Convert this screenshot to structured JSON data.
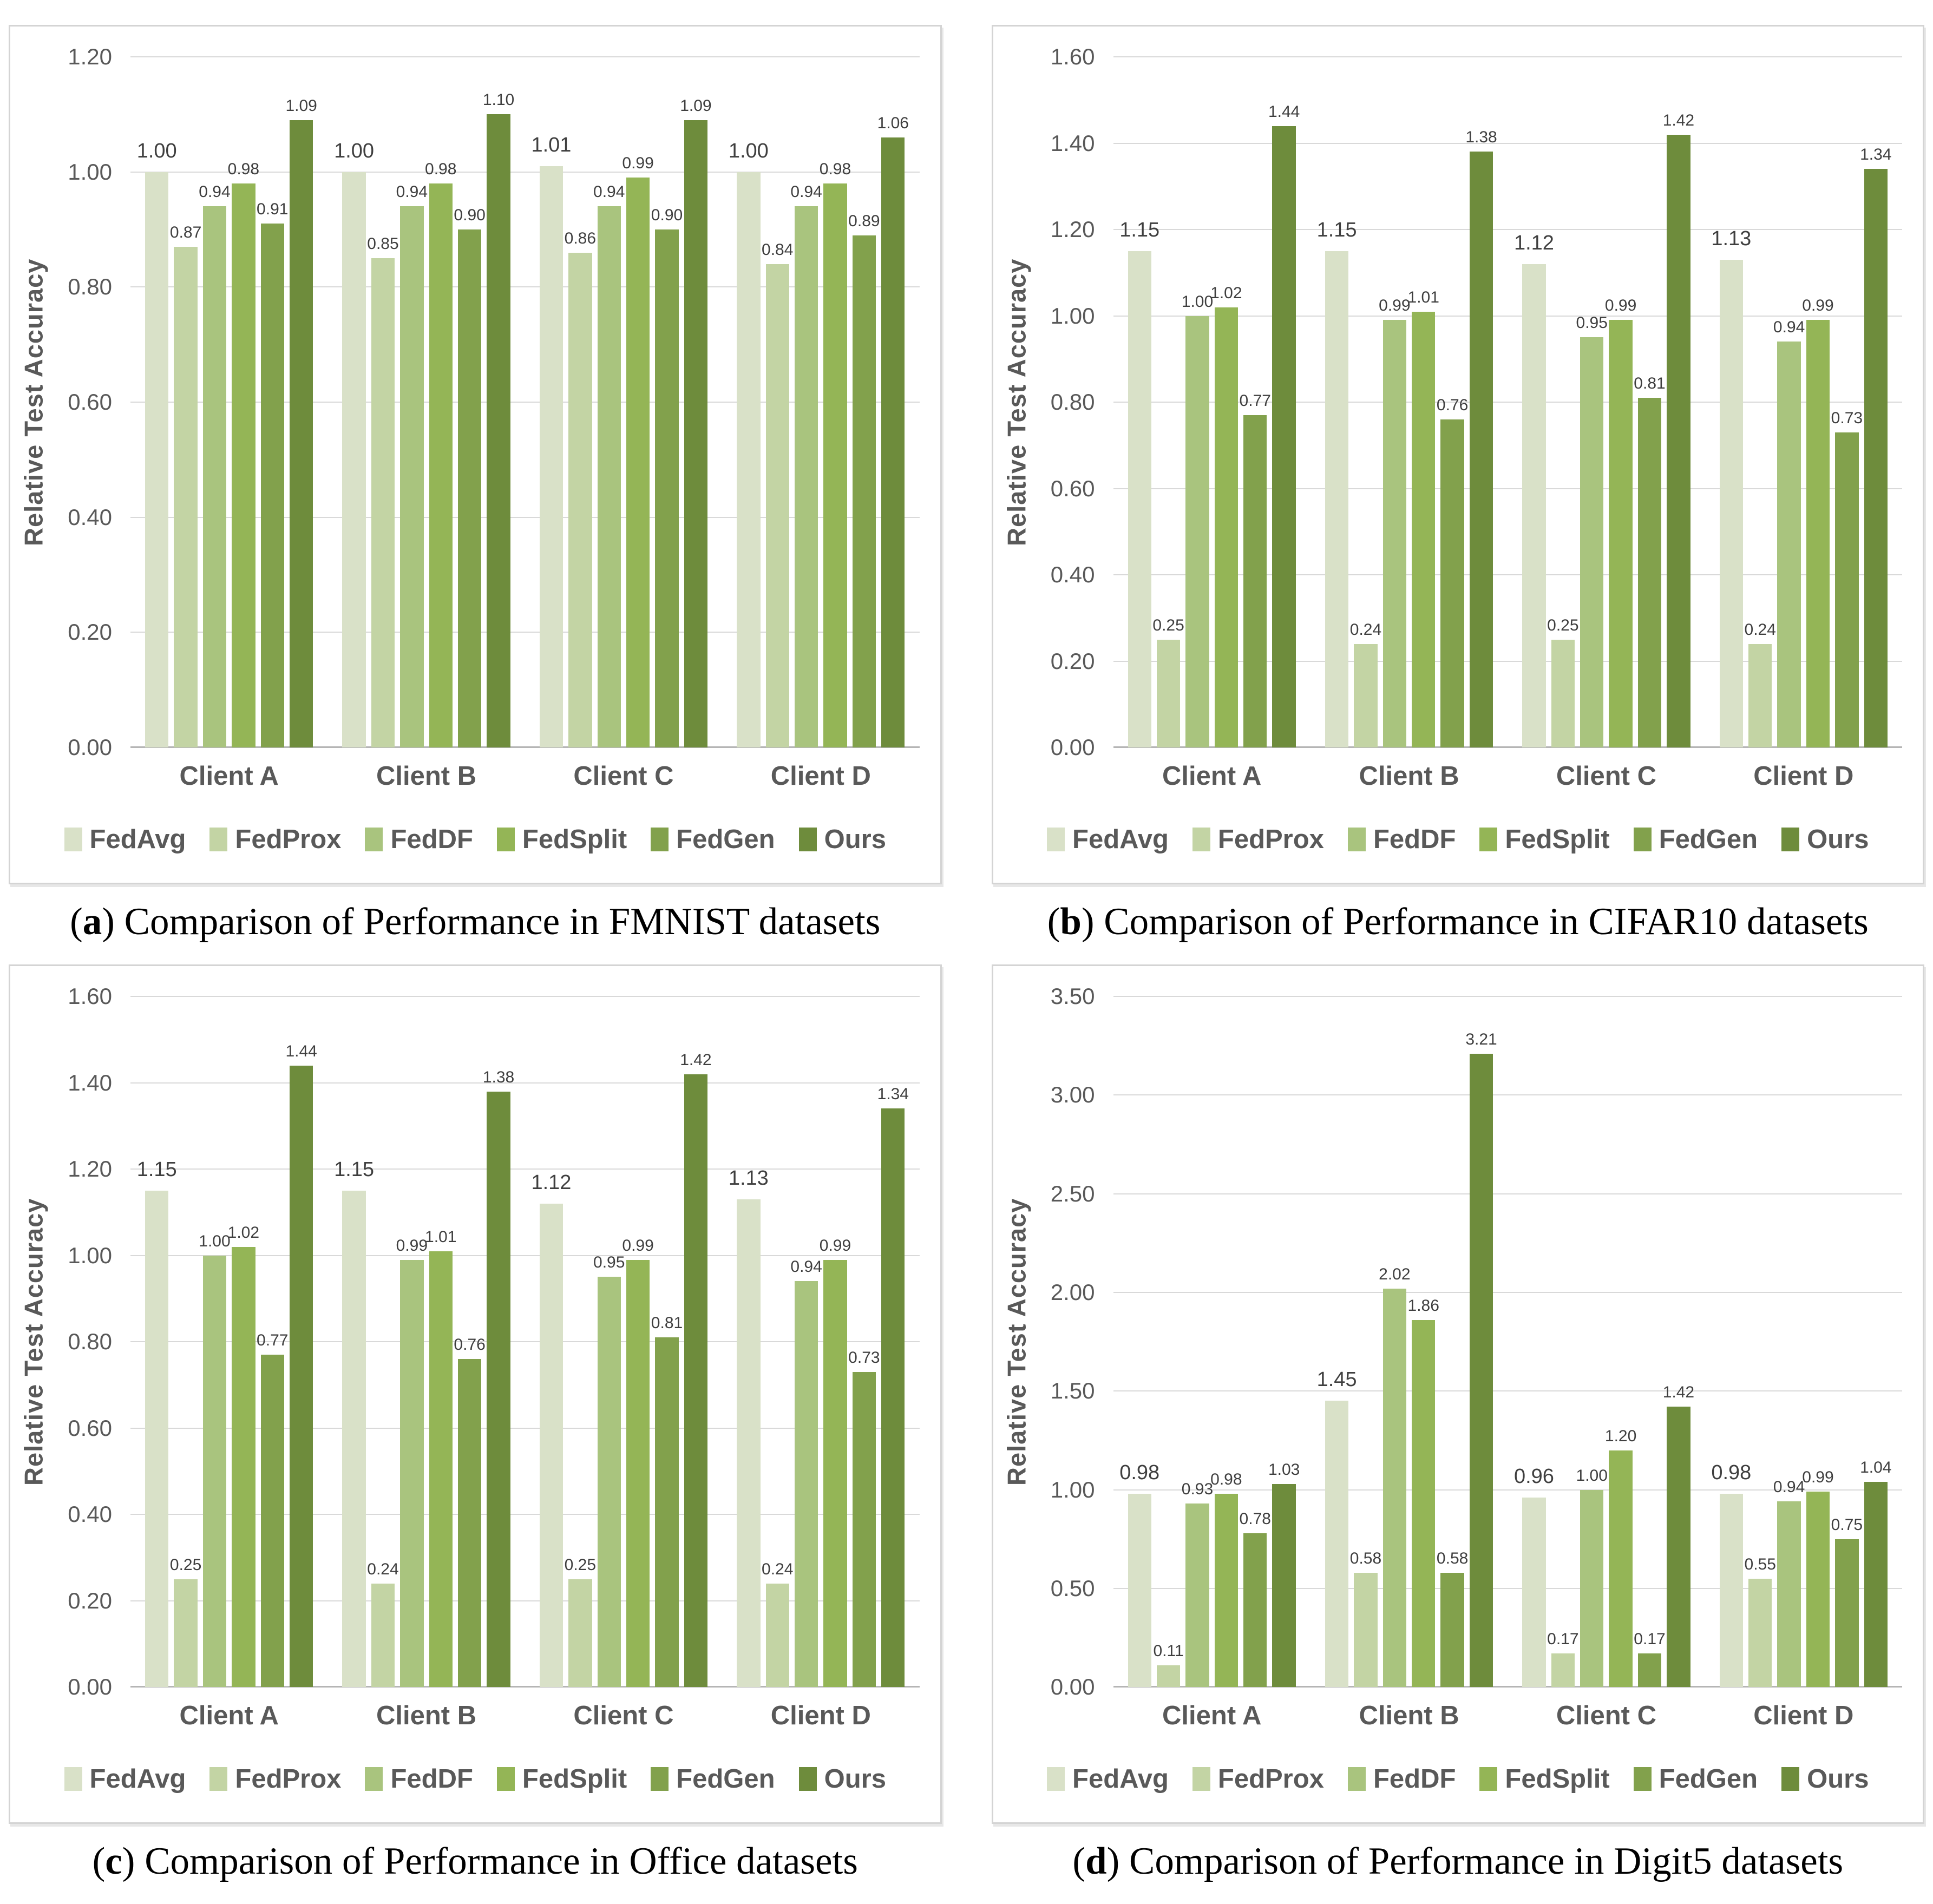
{
  "palette": {
    "FedAvg": "#d9e1c8",
    "FedProx": "#c3d4a4",
    "FedDF": "#a9c47e",
    "FedSplit": "#94b556",
    "FedGen": "#82a14c",
    "Ours": "#6e8c3c"
  },
  "style_colors": {
    "gridline": "#d9d9d9",
    "axis_line": "#b5b5b5",
    "axis_text": "#595959",
    "value_text": "#3f3f3f",
    "panel_border": "#d4d4d4"
  },
  "legend_labels": [
    "FedAvg",
    "FedProx",
    "FedDF",
    "FedSplit",
    "FedGen",
    "Ours"
  ],
  "chart_data": [
    {
      "panel": "a",
      "type": "bar",
      "caption_letter": "a",
      "caption": " Comparison of Performance in FMNIST datasets",
      "ylabel": "Relative Test Accuracy",
      "ymin": 0,
      "ymax": 1.2,
      "ystep": 0.2,
      "grid": true,
      "legend_position": "bottom",
      "categories": [
        "Client A",
        "Client B",
        "Client C",
        "Client D"
      ],
      "series": [
        {
          "name": "FedAvg",
          "values": [
            1.0,
            1.0,
            1.01,
            1.0
          ]
        },
        {
          "name": "FedProx",
          "values": [
            0.87,
            0.85,
            0.86,
            0.84
          ]
        },
        {
          "name": "FedDF",
          "values": [
            0.94,
            0.94,
            0.94,
            0.94
          ]
        },
        {
          "name": "FedSplit",
          "values": [
            0.98,
            0.98,
            0.99,
            0.98
          ]
        },
        {
          "name": "FedGen",
          "values": [
            0.91,
            0.9,
            0.9,
            0.89
          ]
        },
        {
          "name": "Ours",
          "values": [
            1.09,
            1.1,
            1.09,
            1.06
          ]
        }
      ]
    },
    {
      "panel": "b",
      "type": "bar",
      "caption_letter": "b",
      "caption": " Comparison of Performance in CIFAR10 datasets",
      "ylabel": "Relative Test Accuracy",
      "ymin": 0,
      "ymax": 1.6,
      "ystep": 0.2,
      "grid": true,
      "legend_position": "bottom",
      "categories": [
        "Client A",
        "Client B",
        "Client C",
        "Client D"
      ],
      "series": [
        {
          "name": "FedAvg",
          "values": [
            1.15,
            1.15,
            1.12,
            1.13
          ]
        },
        {
          "name": "FedProx",
          "values": [
            0.25,
            0.24,
            0.25,
            0.24
          ]
        },
        {
          "name": "FedDF",
          "values": [
            1.0,
            0.99,
            0.95,
            0.94
          ]
        },
        {
          "name": "FedSplit",
          "values": [
            1.02,
            1.01,
            0.99,
            0.99
          ]
        },
        {
          "name": "FedGen",
          "values": [
            0.77,
            0.76,
            0.81,
            0.73
          ]
        },
        {
          "name": "Ours",
          "values": [
            1.44,
            1.38,
            1.42,
            1.34
          ]
        }
      ]
    },
    {
      "panel": "c",
      "type": "bar",
      "caption_letter": "c",
      "caption": " Comparison of Performance in Office datasets",
      "ylabel": "Relative Test Accuracy",
      "ymin": 0,
      "ymax": 1.6,
      "ystep": 0.2,
      "grid": true,
      "legend_position": "bottom",
      "categories": [
        "Client A",
        "Client B",
        "Client C",
        "Client D"
      ],
      "series": [
        {
          "name": "FedAvg",
          "values": [
            1.15,
            1.15,
            1.12,
            1.13
          ]
        },
        {
          "name": "FedProx",
          "values": [
            0.25,
            0.24,
            0.25,
            0.24
          ]
        },
        {
          "name": "FedDF",
          "values": [
            1.0,
            0.99,
            0.95,
            0.94
          ]
        },
        {
          "name": "FedSplit",
          "values": [
            1.02,
            1.01,
            0.99,
            0.99
          ]
        },
        {
          "name": "FedGen",
          "values": [
            0.77,
            0.76,
            0.81,
            0.73
          ]
        },
        {
          "name": "Ours",
          "values": [
            1.44,
            1.38,
            1.42,
            1.34
          ]
        }
      ]
    },
    {
      "panel": "d",
      "type": "bar",
      "caption_letter": "d",
      "caption": " Comparison of Performance in Digit5 datasets",
      "ylabel": "Relative Test Accuracy",
      "ymin": 0,
      "ymax": 3.5,
      "ystep": 0.5,
      "grid": true,
      "legend_position": "bottom",
      "categories": [
        "Client A",
        "Client B",
        "Client C",
        "Client D"
      ],
      "series": [
        {
          "name": "FedAvg",
          "values": [
            0.98,
            1.45,
            0.96,
            0.98
          ]
        },
        {
          "name": "FedProx",
          "values": [
            0.11,
            0.58,
            0.17,
            0.55
          ]
        },
        {
          "name": "FedDF",
          "values": [
            0.93,
            2.02,
            1.0,
            0.94
          ]
        },
        {
          "name": "FedSplit",
          "values": [
            0.98,
            1.86,
            1.2,
            0.99
          ]
        },
        {
          "name": "FedGen",
          "values": [
            0.78,
            0.58,
            0.17,
            0.75
          ]
        },
        {
          "name": "Ours",
          "values": [
            1.03,
            3.21,
            1.42,
            1.04
          ]
        }
      ]
    }
  ]
}
